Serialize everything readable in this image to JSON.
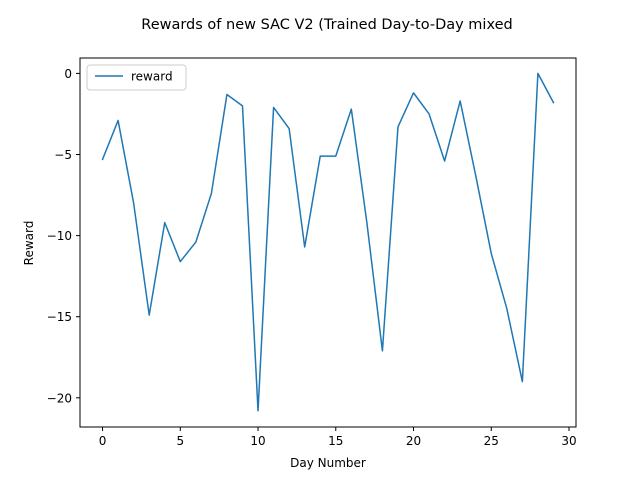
{
  "chart_data": {
    "type": "line",
    "title": "Rewards of new SAC V2 (Trained Day-to-Day mixed",
    "xlabel": "Day Number",
    "ylabel": "Reward",
    "xlim": [
      -1.45,
      30.45
    ],
    "ylim": [
      -21.8,
      0.95
    ],
    "xticks": [
      0,
      5,
      10,
      15,
      20,
      25,
      30
    ],
    "yticks": [
      0,
      -5,
      -10,
      -15,
      -20
    ],
    "ytick_labels": [
      "0",
      "−5",
      "−10",
      "−15",
      "−20"
    ],
    "grid": false,
    "legend": {
      "position": "top-left"
    },
    "series": [
      {
        "name": "reward",
        "color": "#1f77b4",
        "x": [
          0,
          1,
          2,
          3,
          4,
          5,
          6,
          7,
          8,
          9,
          10,
          11,
          12,
          13,
          14,
          15,
          16,
          17,
          18,
          19,
          20,
          21,
          22,
          23,
          24,
          25,
          26,
          27,
          28,
          29
        ],
        "y": [
          -5.3,
          -2.9,
          -8.0,
          -14.9,
          -9.2,
          -11.6,
          -10.4,
          -7.4,
          -1.3,
          -2.0,
          -20.8,
          -2.1,
          -3.4,
          -10.7,
          -5.1,
          -5.1,
          -2.2,
          -9.2,
          -17.1,
          -3.3,
          -1.2,
          -2.5,
          -5.4,
          -1.7,
          -6.3,
          -11.1,
          -14.5,
          -19.0,
          0.0,
          -1.8
        ]
      }
    ]
  }
}
